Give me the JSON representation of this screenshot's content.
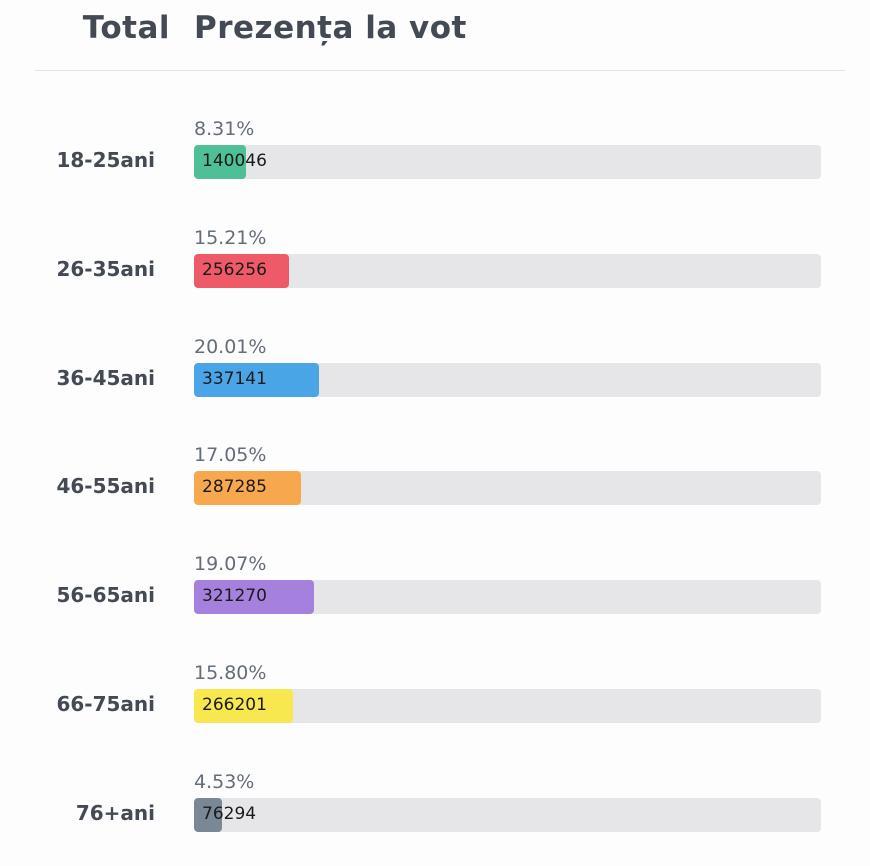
{
  "header": {
    "total_label": "Total",
    "title": "Prezența la vot"
  },
  "chart_data": {
    "type": "bar",
    "orientation": "horizontal",
    "categories": [
      "18-25ani",
      "26-35ani",
      "36-45ani",
      "46-55ani",
      "56-65ani",
      "66-75ani",
      "76+ani"
    ],
    "percent_labels": [
      "8.31%",
      "15.21%",
      "20.01%",
      "17.05%",
      "19.07%",
      "15.80%",
      "4.53%"
    ],
    "percent_values": [
      8.31,
      15.21,
      20.01,
      17.05,
      19.07,
      15.8,
      4.53
    ],
    "values": [
      140046,
      256256,
      337141,
      287285,
      321270,
      266201,
      76294
    ],
    "colors": [
      "#4fbf98",
      "#ef5a68",
      "#4aa5e6",
      "#f7a84f",
      "#a581dd",
      "#f7e84f",
      "#7a8797"
    ],
    "xlim": [
      0,
      100
    ]
  }
}
